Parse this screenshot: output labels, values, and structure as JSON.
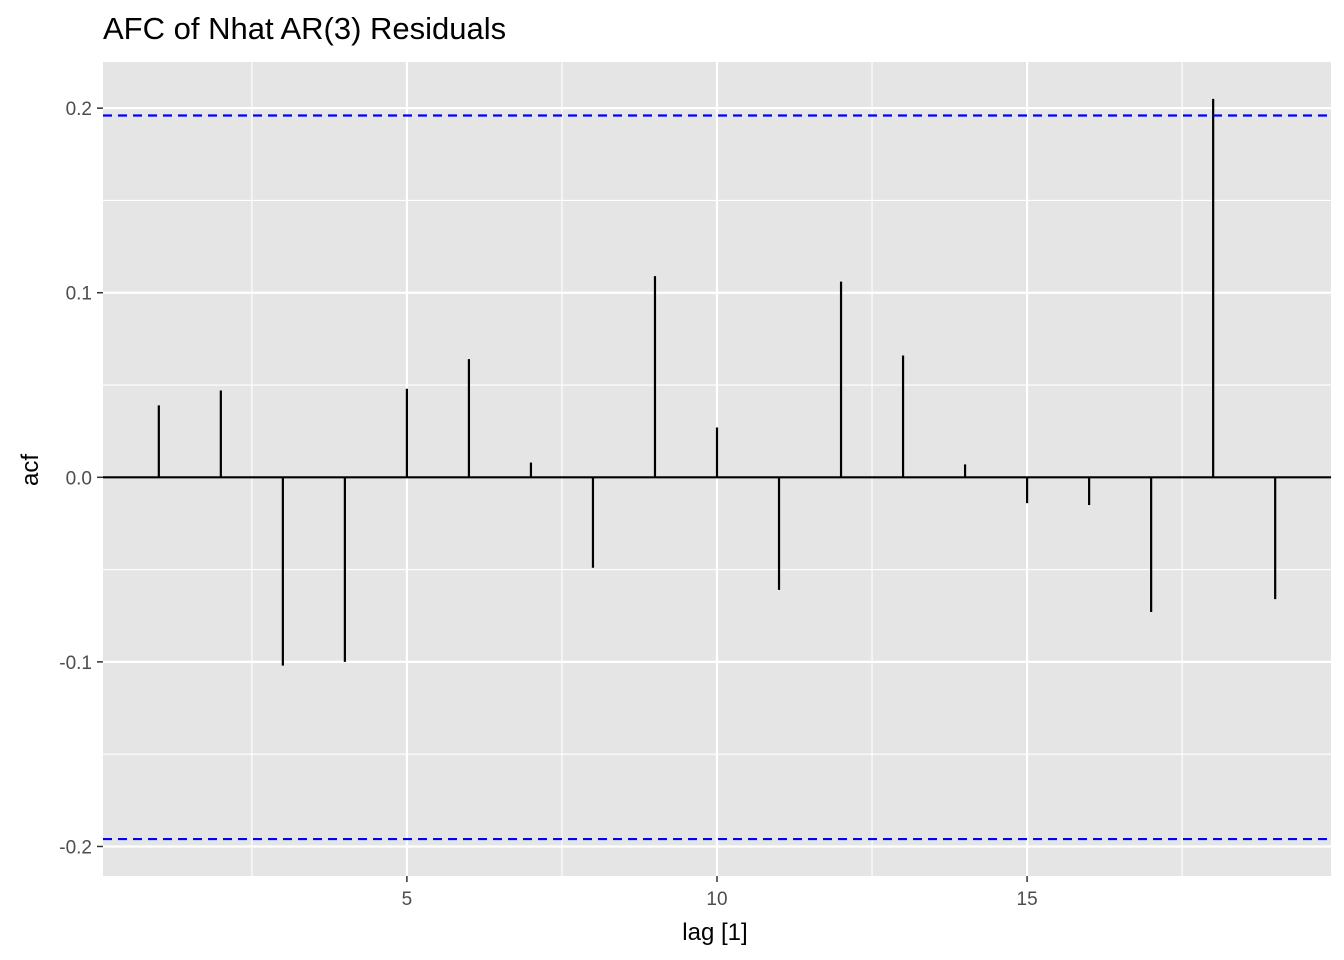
{
  "chart_data": {
    "type": "bar",
    "title": "AFC of Nhat AR(3) Residuals",
    "xlabel": "lag [1]",
    "ylabel": "acf",
    "x_ticks": [
      5,
      10,
      15
    ],
    "x_tick_labels": [
      "5",
      "10",
      "15"
    ],
    "y_ticks": [
      -0.2,
      -0.1,
      0.0,
      0.1,
      0.2
    ],
    "y_tick_labels": [
      "-0.2",
      "-0.1",
      "0.0",
      "0.1",
      "0.2"
    ],
    "xlim": [
      0.1,
      19.9
    ],
    "ylim": [
      -0.216,
      0.225
    ],
    "grid": true,
    "legend": "none",
    "lags": [
      1,
      2,
      3,
      4,
      5,
      6,
      7,
      8,
      9,
      10,
      11,
      12,
      13,
      14,
      15,
      16,
      17,
      18,
      19
    ],
    "acf": [
      0.039,
      0.047,
      -0.102,
      -0.1,
      0.048,
      0.064,
      0.008,
      -0.049,
      0.109,
      0.027,
      -0.061,
      0.106,
      0.066,
      0.007,
      -0.014,
      -0.015,
      -0.073,
      0.205,
      -0.066
    ],
    "confidence_bound": 0.196,
    "colors": {
      "panel_background": "#e5e5e5",
      "grid": "#ffffff",
      "bars": "#000000",
      "confidence_lines": "#0000ff"
    }
  }
}
